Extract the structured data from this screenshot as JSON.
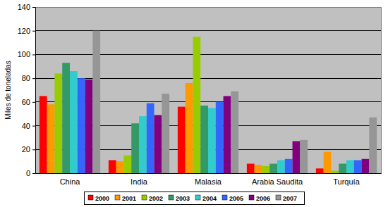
{
  "chart_data": {
    "type": "bar",
    "y_label": "Miles de toneladas",
    "categories": [
      "China",
      "India",
      "Malasia",
      "Arabia Saudita",
      "Turquía"
    ],
    "series": [
      {
        "name": "2000",
        "color": "#ff0000",
        "values": [
          65,
          11,
          56,
          8,
          4
        ]
      },
      {
        "name": "2001",
        "color": "#ff9900",
        "values": [
          58,
          10,
          76,
          7,
          18
        ]
      },
      {
        "name": "2002",
        "color": "#99cc00",
        "values": [
          84,
          15,
          115,
          6,
          2
        ]
      },
      {
        "name": "2003",
        "color": "#339966",
        "values": [
          93,
          42,
          57,
          8,
          8
        ]
      },
      {
        "name": "2004",
        "color": "#33cccc",
        "values": [
          86,
          48,
          55,
          11,
          11
        ]
      },
      {
        "name": "2005",
        "color": "#3366ff",
        "values": [
          80,
          59,
          60,
          12,
          11
        ]
      },
      {
        "name": "2006",
        "color": "#800080",
        "values": [
          79,
          49,
          65,
          27,
          12
        ]
      },
      {
        "name": "2007",
        "color": "#969696",
        "values": [
          120,
          67,
          69,
          28,
          47
        ]
      }
    ],
    "ylim": [
      0,
      140
    ],
    "yticks": [
      0,
      20,
      40,
      60,
      80,
      100,
      120,
      140
    ],
    "grid": true,
    "legend": "bottom"
  }
}
